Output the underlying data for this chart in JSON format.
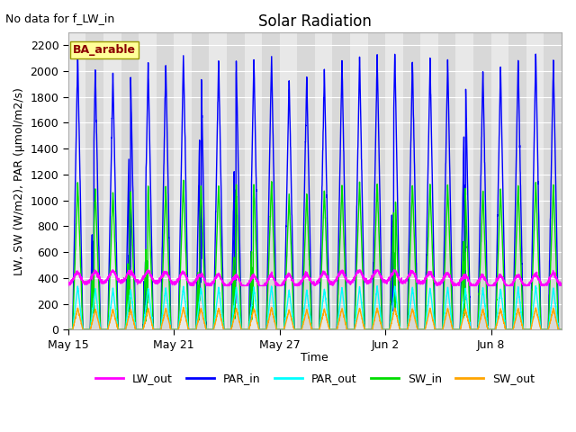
{
  "title": "Solar Radiation",
  "subtitle": "No data for f_LW_in",
  "xlabel": "Time",
  "ylabel": "LW, SW (W/m2), PAR (μmol/m2/s)",
  "ylim": [
    0,
    2300
  ],
  "yticks": [
    0,
    200,
    400,
    600,
    800,
    1000,
    1200,
    1400,
    1600,
    1800,
    2000,
    2200
  ],
  "xtick_labels": [
    "May 15",
    "May 21",
    "May 27",
    "Jun 2",
    "Jun 8"
  ],
  "xtick_positions": [
    0,
    6,
    12,
    18,
    24
  ],
  "legend_label": "BA_arable",
  "legend_label_color": "#8B0000",
  "legend_box_facecolor": "#FFFF99",
  "legend_box_edgecolor": "#999900",
  "series": {
    "LW_out": {
      "color": "#FF00FF",
      "lw": 1.0
    },
    "PAR_in": {
      "color": "#0000FF",
      "lw": 1.0
    },
    "PAR_out": {
      "color": "#00FFFF",
      "lw": 1.0
    },
    "SW_in": {
      "color": "#00DD00",
      "lw": 1.0
    },
    "SW_out": {
      "color": "#FFA500",
      "lw": 1.0
    }
  },
  "n_days": 28,
  "points_per_day": 144,
  "background_color": "#e8e8e8",
  "band_colors": [
    "#e0e0e0",
    "#d8d8d8"
  ],
  "grid_color": "#ffffff",
  "title_fontsize": 12,
  "label_fontsize": 9,
  "tick_fontsize": 9,
  "figsize": [
    6.4,
    4.8
  ],
  "dpi": 100
}
